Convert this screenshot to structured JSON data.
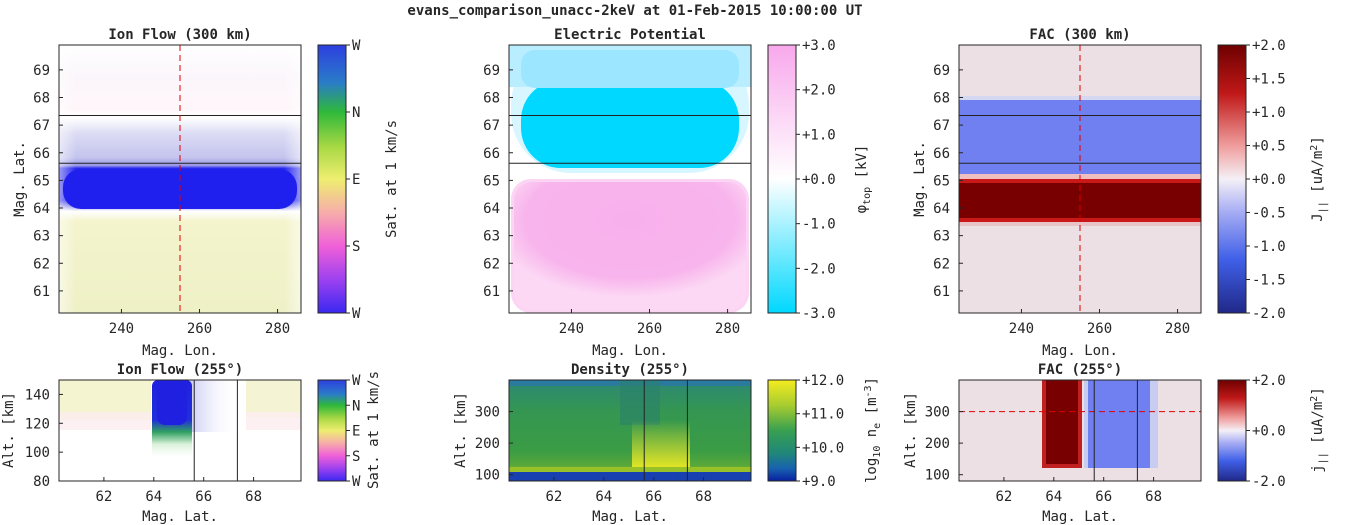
{
  "figure": {
    "title": "evans_comparison_unacc-2keV at 01-Feb-2015 10:00:00 UT"
  },
  "colors": {
    "cyan": "#00d8ff",
    "pink": "#f8b0ec",
    "blue_fac": "#7080f0",
    "red_fac": "#780000",
    "bg_fac": "#ece0e4",
    "ionflow_blue": "#2020ee",
    "ionflow_yellow": "#f0f0c8",
    "guide_line": "#e00000"
  },
  "chart_data": [
    {
      "id": "ion-flow-300",
      "type": "heatmap",
      "title": "Ion Flow (300 km)",
      "xlabel": "Mag. Lon.",
      "ylabel": "Mag. Lat.",
      "xlim": [
        224,
        286
      ],
      "ylim": [
        60.2,
        69.9
      ],
      "xticks": [
        240,
        260,
        280
      ],
      "yticks": [
        61,
        62,
        63,
        64,
        65,
        66,
        67,
        68,
        69
      ],
      "cbar_label": "Sat. at 1 km/s",
      "cbar_ticks": [
        "W",
        "S",
        "E",
        "N",
        "W"
      ],
      "vline": 255,
      "hlines": [
        67.35,
        65.62
      ]
    },
    {
      "id": "electric-potential",
      "type": "heatmap",
      "title": "Electric Potential",
      "xlabel": "Mag. Lon.",
      "xlim": [
        224,
        286
      ],
      "ylim": [
        60.2,
        69.9
      ],
      "xticks": [
        240,
        260,
        280
      ],
      "yticks": [
        61,
        62,
        63,
        64,
        65,
        66,
        67,
        68,
        69
      ],
      "cbar_label_main": "φ",
      "cbar_label_sub": "top",
      "cbar_label_unit": " [kV]",
      "cbar_ticks": [
        "-3.0",
        "-2.0",
        "-1.0",
        "+0.0",
        "+1.0",
        "+2.0",
        "+3.0"
      ],
      "clim": [
        -3,
        3
      ],
      "hlines": [
        67.35,
        65.62
      ]
    },
    {
      "id": "fac-300",
      "type": "heatmap",
      "title": "FAC (300 km)",
      "xlabel": "Mag. Lon.",
      "ylabel": "Mag. Lat.",
      "xlim": [
        224,
        286
      ],
      "ylim": [
        60.2,
        69.9
      ],
      "xticks": [
        240,
        260,
        280
      ],
      "yticks": [
        61,
        62,
        63,
        64,
        65,
        66,
        67,
        68,
        69
      ],
      "cbar_label_main": "J",
      "cbar_label_sub": "||",
      "cbar_label_unit": " [uA/m",
      "cbar_label_sup": "2",
      "cbar_label_close": "]",
      "cbar_ticks": [
        "-2.0",
        "-1.5",
        "-1.0",
        "-0.5",
        "+0.0",
        "+0.5",
        "+1.0",
        "+1.5",
        "+2.0"
      ],
      "clim": [
        -2,
        2
      ],
      "vline": 255,
      "hlines": [
        67.35,
        65.62
      ]
    },
    {
      "id": "ion-flow-255",
      "type": "heatmap",
      "title": "Ion Flow (255°)",
      "xlabel": "Mag. Lat.",
      "ylabel": "Alt. [km]",
      "xlim": [
        60.2,
        69.9
      ],
      "ylim": [
        80,
        150
      ],
      "xticks": [
        62,
        64,
        66,
        68
      ],
      "yticks": [
        80,
        100,
        120,
        140
      ],
      "cbar_label": "Sat. at 1 km/s",
      "cbar_ticks": [
        "W",
        "S",
        "E",
        "N",
        "W"
      ],
      "vlines": [
        65.62,
        67.35
      ]
    },
    {
      "id": "density-255",
      "type": "heatmap",
      "title": "Density (255°)",
      "xlabel": "Mag. Lat.",
      "ylabel": "Alt. [km]",
      "xlim": [
        60.2,
        69.9
      ],
      "ylim": [
        80,
        400
      ],
      "xticks": [
        62,
        64,
        66,
        68
      ],
      "yticks": [
        100,
        200,
        300
      ],
      "cbar_label_main": "log",
      "cbar_label_sub": "10",
      "cbar_label_unit": " n",
      "cbar_label_sub2": "e",
      "cbar_label_unit2": " [m",
      "cbar_label_sup": "-3",
      "cbar_label_close": "]",
      "cbar_ticks": [
        "+9.0",
        "+10.0",
        "+11.0",
        "+12.0"
      ],
      "clim": [
        9,
        12
      ],
      "vlines": [
        65.62,
        67.35
      ]
    },
    {
      "id": "fac-255",
      "type": "heatmap",
      "title": "FAC (255°)",
      "xlabel": "Mag. Lat.",
      "ylabel": "Alt. [km]",
      "xlim": [
        60.2,
        69.9
      ],
      "ylim": [
        80,
        400
      ],
      "xticks": [
        62,
        64,
        66,
        68
      ],
      "yticks": [
        100,
        200,
        300
      ],
      "cbar_label_main": "j",
      "cbar_label_sub": "||",
      "cbar_label_unit": " [uA/m",
      "cbar_label_sup": "2",
      "cbar_label_close": "]",
      "cbar_ticks": [
        "-2.0",
        "+0.0",
        "+2.0"
      ],
      "clim": [
        -2,
        2
      ],
      "hline": 300,
      "vlines": [
        65.62,
        67.35
      ]
    }
  ]
}
